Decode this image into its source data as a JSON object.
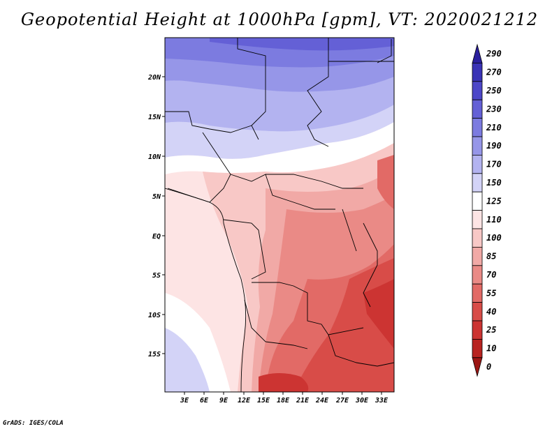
{
  "title": "Geopotential Height at 1000hPa [gpm], VT: 2020021212",
  "credit": "GrADS: IGES/COLA",
  "map": {
    "region": "Central Africa",
    "lat_labels": [
      "20N",
      "15N",
      "10N",
      "5N",
      "EQ",
      "5S",
      "10S",
      "15S"
    ],
    "lon_labels": [
      "3E",
      "6E",
      "9E",
      "12E",
      "15E",
      "18E",
      "21E",
      "24E",
      "27E",
      "30E",
      "33E"
    ]
  },
  "colorbar": {
    "levels": [
      "290",
      "270",
      "250",
      "230",
      "210",
      "190",
      "170",
      "150",
      "125",
      "110",
      "100",
      "85",
      "70",
      "55",
      "40",
      "25",
      "10",
      "0"
    ],
    "colors": [
      "#2a1f9e",
      "#3a33b6",
      "#4d47c8",
      "#6460d6",
      "#7c7be0",
      "#9696e8",
      "#b3b3f0",
      "#d3d3f7",
      "#ffffff",
      "#fde4e4",
      "#f8c8c6",
      "#f1a9a6",
      "#ea8a86",
      "#e26a66",
      "#d84c48",
      "#cc3432",
      "#b82320",
      "#9c1614"
    ]
  }
}
